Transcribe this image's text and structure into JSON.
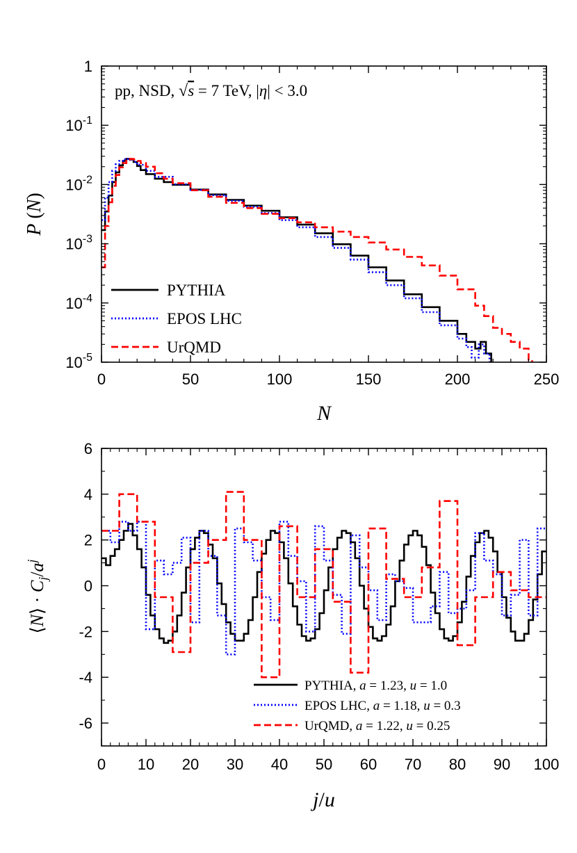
{
  "chart_data": [
    {
      "type": "line",
      "annotation": "pp, NSD, √s = 7 TeV, |η| < 3.0",
      "xlabel": "N",
      "ylabel": "P(N)",
      "xlim": [
        0,
        250
      ],
      "ylim": [
        1e-05,
        1
      ],
      "yscale": "log",
      "xticks": [
        "0",
        "50",
        "100",
        "150",
        "200",
        "250"
      ],
      "yticks": [
        {
          "base": "1",
          "exp": ""
        },
        {
          "base": "10",
          "exp": "-1"
        },
        {
          "base": "10",
          "exp": "-2"
        },
        {
          "base": "10",
          "exp": "-3"
        },
        {
          "base": "10",
          "exp": "-4"
        },
        {
          "base": "10",
          "exp": "-5"
        }
      ],
      "legend_position": "bottom-left",
      "series": [
        {
          "name": "PYTHIA",
          "color": "#000000",
          "dash": "solid",
          "points": [
            [
              0,
              0.0017
            ],
            [
              2,
              0.0035
            ],
            [
              4,
              0.0065
            ],
            [
              6,
              0.011
            ],
            [
              8,
              0.016
            ],
            [
              10,
              0.021
            ],
            [
              12,
              0.025
            ],
            [
              14,
              0.027
            ],
            [
              16,
              0.0265
            ],
            [
              18,
              0.024
            ],
            [
              20,
              0.0205
            ],
            [
              22,
              0.0175
            ],
            [
              25,
              0.015
            ],
            [
              30,
              0.0125
            ],
            [
              35,
              0.011
            ],
            [
              40,
              0.0099
            ],
            [
              50,
              0.0082
            ],
            [
              60,
              0.0068
            ],
            [
              70,
              0.0055
            ],
            [
              80,
              0.0044
            ],
            [
              90,
              0.0036
            ],
            [
              100,
              0.0028
            ],
            [
              110,
              0.0021
            ],
            [
              120,
              0.0015
            ],
            [
              130,
              0.00098
            ],
            [
              140,
              0.00063
            ],
            [
              150,
              0.0004
            ],
            [
              160,
              0.00024
            ],
            [
              170,
              0.00014
            ],
            [
              180,
              8.5e-05
            ],
            [
              190,
              5e-05
            ],
            [
              200,
              3e-05
            ],
            [
              205,
              2.2e-05
            ],
            [
              210,
              1.7e-05
            ],
            [
              213,
              2.2e-05
            ],
            [
              216,
              1.4e-05
            ],
            [
              219,
              1e-05
            ]
          ]
        },
        {
          "name": "EPOS LHC",
          "color": "#0000ff",
          "dash": "dotted",
          "points": [
            [
              0,
              0.0025
            ],
            [
              2,
              0.006
            ],
            [
              4,
              0.011
            ],
            [
              6,
              0.017
            ],
            [
              8,
              0.022
            ],
            [
              10,
              0.025
            ],
            [
              12,
              0.0265
            ],
            [
              14,
              0.027
            ],
            [
              16,
              0.026
            ],
            [
              18,
              0.024
            ],
            [
              20,
              0.0215
            ],
            [
              25,
              0.017
            ],
            [
              30,
              0.0135
            ],
            [
              40,
              0.0101
            ],
            [
              50,
              0.0081
            ],
            [
              60,
              0.0066
            ],
            [
              70,
              0.0053
            ],
            [
              80,
              0.0042
            ],
            [
              90,
              0.0033
            ],
            [
              100,
              0.0025
            ],
            [
              110,
              0.0019
            ],
            [
              120,
              0.0013
            ],
            [
              130,
              0.00085
            ],
            [
              140,
              0.00054
            ],
            [
              150,
              0.00033
            ],
            [
              160,
              0.0002
            ],
            [
              170,
              0.00012
            ],
            [
              180,
              7e-05
            ],
            [
              190,
              4.2e-05
            ],
            [
              200,
              2.5e-05
            ],
            [
              205,
              1.8e-05
            ],
            [
              208,
              1.2e-05
            ],
            [
              212,
              2e-05
            ],
            [
              215,
              1.4e-05
            ],
            [
              218,
              1e-05
            ]
          ]
        },
        {
          "name": "UrQMD",
          "color": "#ff0000",
          "dash": "dashed",
          "points": [
            [
              0,
              0.0004
            ],
            [
              2,
              0.002
            ],
            [
              4,
              0.005
            ],
            [
              6,
              0.0095
            ],
            [
              8,
              0.0145
            ],
            [
              10,
              0.0195
            ],
            [
              12,
              0.023
            ],
            [
              14,
              0.0255
            ],
            [
              16,
              0.027
            ],
            [
              18,
              0.0265
            ],
            [
              20,
              0.025
            ],
            [
              22,
              0.023
            ],
            [
              25,
              0.02
            ],
            [
              30,
              0.0155
            ],
            [
              35,
              0.0125
            ],
            [
              40,
              0.0105
            ],
            [
              50,
              0.008
            ],
            [
              60,
              0.0062
            ],
            [
              70,
              0.0049
            ],
            [
              80,
              0.004
            ],
            [
              90,
              0.0032
            ],
            [
              100,
              0.0027
            ],
            [
              110,
              0.0023
            ],
            [
              120,
              0.0019
            ],
            [
              130,
              0.0016
            ],
            [
              140,
              0.0013
            ],
            [
              150,
              0.00105
            ],
            [
              160,
              0.0008
            ],
            [
              170,
              0.0006
            ],
            [
              180,
              0.00043
            ],
            [
              190,
              0.00029
            ],
            [
              200,
              0.00017
            ],
            [
              210,
              9e-05
            ],
            [
              215,
              6e-05
            ],
            [
              220,
              3.8e-05
            ],
            [
              225,
              3e-05
            ],
            [
              230,
              2.2e-05
            ],
            [
              235,
              1.7e-05
            ],
            [
              240,
              1.1e-05
            ],
            [
              242,
              1e-05
            ]
          ]
        }
      ]
    },
    {
      "type": "line",
      "xlabel": "j/u",
      "ylabel": "⟨N⟩ · C_j/a^j",
      "xlim": [
        0,
        100
      ],
      "ylim": [
        -7,
        6
      ],
      "xticks": [
        "0",
        "10",
        "20",
        "30",
        "40",
        "50",
        "60",
        "70",
        "80",
        "90",
        "100"
      ],
      "yticks": [
        "6",
        "4",
        "2",
        "0",
        "-2",
        "-4",
        "-6"
      ],
      "legend_position": "bottom-right",
      "series": [
        {
          "name": "PYTHIA, a = 1.23, u = 1.0",
          "legend": {
            "model": "PYTHIA",
            "a": "1.23",
            "u": "1.0"
          },
          "color": "#000000",
          "dash": "solid",
          "step": 1,
          "values": [
            1.2,
            0.9,
            1.3,
            1.6,
            2.0,
            2.4,
            2.7,
            2.2,
            1.6,
            0.8,
            -0.4,
            -1.3,
            -1.9,
            -2.3,
            -2.5,
            -2.4,
            -2.0,
            -1.3,
            -0.3,
            0.8,
            1.6,
            2.1,
            2.4,
            2.3,
            1.8,
            1.2,
            0.1,
            -0.8,
            -1.6,
            -2.1,
            -2.4,
            -2.4,
            -2.1,
            -1.5,
            -0.5,
            0.6,
            1.4,
            2.0,
            2.4,
            2.3,
            1.9,
            1.2,
            0.1,
            -0.9,
            -1.7,
            -2.2,
            -2.4,
            -2.3,
            -1.9,
            -1.2,
            -0.2,
            0.8,
            1.6,
            2.1,
            2.4,
            2.3,
            1.9,
            1.2,
            0.0,
            -1.0,
            -1.8,
            -2.3,
            -2.4,
            -2.2,
            -1.7,
            -0.9,
            0.2,
            1.1,
            1.8,
            2.2,
            2.4,
            2.2,
            1.7,
            0.9,
            -0.3,
            -1.2,
            -1.9,
            -2.3,
            -2.4,
            -2.2,
            -1.6,
            -0.7,
            0.4,
            1.3,
            1.9,
            2.3,
            2.4,
            2.1,
            1.5,
            0.6,
            -0.5,
            -1.4,
            -2.0,
            -2.4,
            -2.4,
            -2.1,
            -1.5,
            -0.6,
            0.5,
            1.5
          ]
        },
        {
          "name": "EPOS LHC, a = 1.18, u = 0.3",
          "legend": {
            "model": "EPOS LHC",
            "a": "1.18",
            "u": "0.3"
          },
          "color": "#0000ff",
          "dash": "dotted",
          "step": 2,
          "values": [
            2.4,
            1.9,
            2.8,
            2.4,
            2.8,
            -1.9,
            1.1,
            0.5,
            1.0,
            2.1,
            -1.6,
            2.4,
            1.3,
            -1.3,
            -3.0,
            2.5,
            1.9,
            1.1,
            -0.5,
            -1.5,
            2.8,
            1.3,
            0.2,
            -2.0,
            2.6,
            1.1,
            -0.4,
            -2.1,
            2.2,
            0.8,
            -0.2,
            -1.5,
            0.5,
            0.2,
            -0.1,
            -1.6,
            -1.6,
            -0.9,
            0.6,
            -1.2,
            -1.0,
            -0.2,
            2.3,
            1.1,
            0.5,
            -1.3,
            -0.4,
            2.0,
            -1.3,
            2.5
          ]
        },
        {
          "name": "UrQMD, a = 1.22, u = 0.25",
          "legend": {
            "model": "UrQMD",
            "a": "1.22",
            "u": "0.25"
          },
          "color": "#ff0000",
          "dash": "dashed",
          "step": 4,
          "values": [
            2.4,
            4.0,
            2.8,
            -0.5,
            -2.9,
            1.0,
            2.0,
            4.1,
            2.0,
            -4.0,
            2.6,
            -0.5,
            1.6,
            -0.7,
            -3.8,
            2.5,
            0.3,
            -0.5,
            0.8,
            3.7,
            -2.6,
            -0.5,
            0.6,
            -0.2,
            -0.5
          ]
        }
      ]
    }
  ]
}
